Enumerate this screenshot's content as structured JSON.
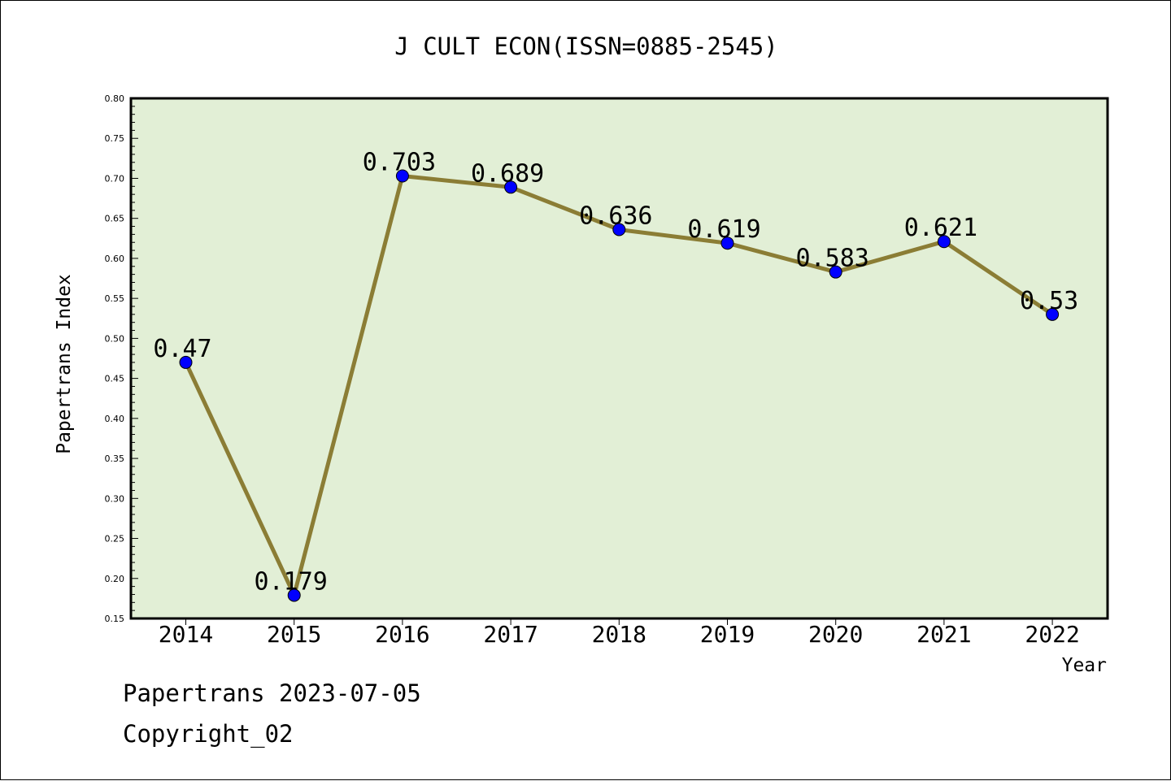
{
  "chart_data": {
    "type": "line",
    "title": "J CULT ECON(ISSN=0885-2545)",
    "xlabel": "Year",
    "ylabel": "Papertrans Index",
    "categories": [
      "2014",
      "2015",
      "2016",
      "2017",
      "2018",
      "2019",
      "2020",
      "2021",
      "2022"
    ],
    "values": [
      0.47,
      0.179,
      0.703,
      0.689,
      0.636,
      0.619,
      0.583,
      0.621,
      0.53
    ],
    "value_labels": [
      "0.47",
      "0.179",
      "0.703",
      "0.689",
      "0.636",
      "0.619",
      "0.583",
      "0.621",
      "0.53"
    ],
    "ylim": [
      0.15,
      0.8
    ],
    "yticks": [
      "0.15",
      "0.20",
      "0.25",
      "0.30",
      "0.35",
      "0.40",
      "0.45",
      "0.50",
      "0.55",
      "0.60",
      "0.65",
      "0.70",
      "0.75",
      "0.80"
    ],
    "grid": false,
    "colors": {
      "plot_background": "#e2efd6",
      "line": "#8b7d35",
      "marker": "#0000ff"
    }
  },
  "footer": {
    "line1": "Papertrans 2023-07-05",
    "line2": "Copyright_02"
  }
}
